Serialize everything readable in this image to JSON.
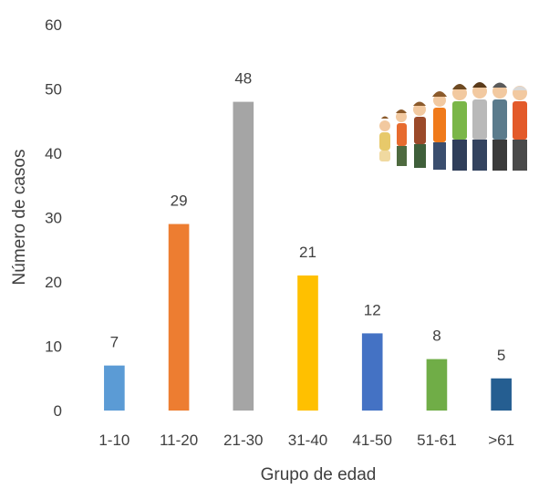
{
  "chart_data": {
    "type": "bar",
    "title": "",
    "xlabel": "Grupo de edad",
    "ylabel": "Número de casos",
    "ylim": [
      0,
      60
    ],
    "yticks": [
      0,
      10,
      20,
      30,
      40,
      50,
      60
    ],
    "grid": false,
    "legend": "none",
    "categories": [
      "1-10",
      "11-20",
      "21-30",
      "31-40",
      "41-50",
      "51-61",
      ">61"
    ],
    "values": [
      7,
      29,
      48,
      21,
      12,
      8,
      5
    ],
    "colors": [
      "#5B9BD5",
      "#ED7D31",
      "#A5A5A5",
      "#FFC000",
      "#4472C4",
      "#70AD47",
      "#255E91"
    ],
    "data_labels": true
  },
  "decoration": {
    "icon": "family-generations-illustration-icon"
  }
}
